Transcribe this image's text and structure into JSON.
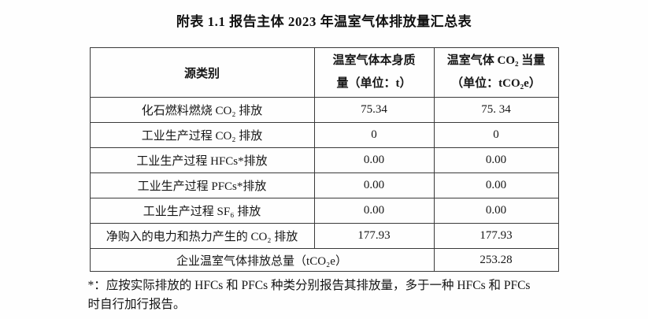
{
  "page": {
    "title": "附表 1.1 报告主体 2023 年温室气体排放量汇总表"
  },
  "table": {
    "header": {
      "col1": "源类别",
      "col2_line1": "温室气体本身质",
      "col2_line2": "量（单位：t）",
      "col3_line1": "温室气体 CO₂ 当量",
      "col3_line2": "（单位：tCO₂e）"
    },
    "rows": [
      {
        "label": "化石燃料燃烧 CO₂ 排放",
        "mass": "75.34",
        "co2e": "75. 34"
      },
      {
        "label": "工业生产过程 CO₂ 排放",
        "mass": "0",
        "co2e": "0"
      },
      {
        "label": "工业生产过程 HFCs*排放",
        "mass": "0.00",
        "co2e": "0.00"
      },
      {
        "label": "工业生产过程 PFCs*排放",
        "mass": "0.00",
        "co2e": "0.00"
      },
      {
        "label": "工业生产过程 SF₆ 排放",
        "mass": "0.00",
        "co2e": "0.00"
      },
      {
        "label": "净购入的电力和热力产生的 CO₂ 排放",
        "mass": "177.93",
        "co2e": "177.93"
      }
    ],
    "total": {
      "label": "企业温室气体排放总量（tCO₂e）",
      "value": "253.28"
    }
  },
  "footnote": {
    "line1": "*：应按实际排放的 HFCs 和 PFCs 种类分别报告其排放量，多于一种 HFCs 和 PFCs",
    "line2": "时自行加行报告。"
  }
}
